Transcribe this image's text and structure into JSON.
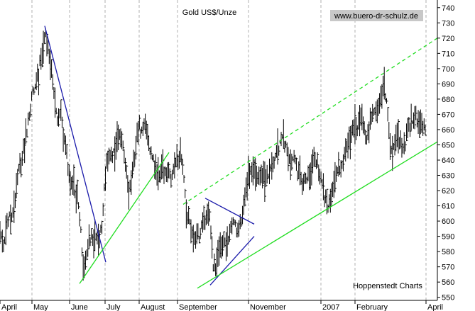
{
  "chart_data": {
    "type": "ohlc",
    "title": "Gold US$/Unze",
    "watermark": "www.buero-dr-schulz.de",
    "source": "Hoppenstedt Charts",
    "x_labels": [
      "April",
      "May",
      "June",
      "July",
      "August",
      "September",
      "November",
      "2007",
      "February",
      "April"
    ],
    "y_ticks": [
      550,
      560,
      570,
      580,
      590,
      600,
      610,
      620,
      630,
      640,
      650,
      660,
      670,
      680,
      690,
      700,
      710,
      720,
      730,
      740
    ],
    "ylim": [
      548,
      745
    ],
    "xlim": [
      0,
      616
    ],
    "x_label_positions": [
      0,
      45,
      98,
      148,
      196,
      250,
      350,
      452,
      500,
      600
    ],
    "grid": "vertical-dashed",
    "axis": "right",
    "colors": {
      "grid": "#b0b0b0",
      "bars": "#000000",
      "blue_lines": "#1a1aaa",
      "green_lines": "#22dd22",
      "watermark_bg": "#c8c8c8"
    },
    "anchors": [
      [
        0,
        590
      ],
      [
        5,
        587
      ],
      [
        10,
        598
      ],
      [
        16,
        603
      ],
      [
        20,
        610
      ],
      [
        25,
        628
      ],
      [
        30,
        640
      ],
      [
        34,
        648
      ],
      [
        38,
        660
      ],
      [
        42,
        672
      ],
      [
        46,
        685
      ],
      [
        50,
        688
      ],
      [
        54,
        695
      ],
      [
        57,
        705
      ],
      [
        60,
        712
      ],
      [
        63,
        724
      ],
      [
        66,
        718
      ],
      [
        70,
        708
      ],
      [
        73,
        697
      ],
      [
        76,
        680
      ],
      [
        80,
        668
      ],
      [
        83,
        672
      ],
      [
        87,
        665
      ],
      [
        91,
        654
      ],
      [
        94,
        645
      ],
      [
        97,
        630
      ],
      [
        100,
        626
      ],
      [
        103,
        625
      ],
      [
        106,
        620
      ],
      [
        109,
        614
      ],
      [
        112,
        608
      ],
      [
        115,
        582
      ],
      [
        117,
        572
      ],
      [
        120,
        575
      ],
      [
        123,
        582
      ],
      [
        126,
        586
      ],
      [
        129,
        590
      ],
      [
        132,
        587
      ],
      [
        135,
        592
      ],
      [
        138,
        585
      ],
      [
        141,
        588
      ],
      [
        144,
        600
      ],
      [
        147,
        620
      ],
      [
        150,
        634
      ],
      [
        154,
        640
      ],
      [
        158,
        642
      ],
      [
        162,
        647
      ],
      [
        166,
        660
      ],
      [
        170,
        655
      ],
      [
        174,
        647
      ],
      [
        178,
        632
      ],
      [
        181,
        615
      ],
      [
        184,
        625
      ],
      [
        188,
        640
      ],
      [
        192,
        652
      ],
      [
        196,
        662
      ],
      [
        200,
        658
      ],
      [
        204,
        664
      ],
      [
        208,
        655
      ],
      [
        212,
        645
      ],
      [
        216,
        638
      ],
      [
        220,
        635
      ],
      [
        224,
        630
      ],
      [
        228,
        638
      ],
      [
        232,
        632
      ],
      [
        236,
        630
      ],
      [
        240,
        628
      ],
      [
        244,
        632
      ],
      [
        248,
        640
      ],
      [
        252,
        645
      ],
      [
        256,
        640
      ],
      [
        260,
        622
      ],
      [
        263,
        600
      ],
      [
        266,
        602
      ],
      [
        269,
        595
      ],
      [
        272,
        590
      ],
      [
        275,
        585
      ],
      [
        278,
        592
      ],
      [
        281,
        588
      ],
      [
        284,
        596
      ],
      [
        287,
        598
      ],
      [
        290,
        602
      ],
      [
        293,
        608
      ],
      [
        296,
        600
      ],
      [
        298,
        582
      ],
      [
        301,
        570
      ],
      [
        304,
        566
      ],
      [
        307,
        575
      ],
      [
        310,
        580
      ],
      [
        313,
        585
      ],
      [
        316,
        588
      ],
      [
        319,
        585
      ],
      [
        322,
        590
      ],
      [
        325,
        598
      ],
      [
        328,
        602
      ],
      [
        331,
        598
      ],
      [
        334,
        590
      ],
      [
        337,
        595
      ],
      [
        340,
        600
      ],
      [
        343,
        608
      ],
      [
        346,
        618
      ],
      [
        350,
        630
      ],
      [
        354,
        635
      ],
      [
        358,
        632
      ],
      [
        362,
        626
      ],
      [
        366,
        628
      ],
      [
        370,
        630
      ],
      [
        374,
        625
      ],
      [
        378,
        630
      ],
      [
        382,
        635
      ],
      [
        386,
        640
      ],
      [
        390,
        645
      ],
      [
        394,
        650
      ],
      [
        398,
        655
      ],
      [
        402,
        650
      ],
      [
        406,
        640
      ],
      [
        410,
        638
      ],
      [
        414,
        640
      ],
      [
        418,
        635
      ],
      [
        422,
        630
      ],
      [
        426,
        625
      ],
      [
        430,
        628
      ],
      [
        434,
        632
      ],
      [
        438,
        636
      ],
      [
        442,
        642
      ],
      [
        446,
        638
      ],
      [
        450,
        632
      ],
      [
        454,
        625
      ],
      [
        456,
        618
      ],
      [
        459,
        612
      ],
      [
        462,
        610
      ],
      [
        465,
        615
      ],
      [
        468,
        622
      ],
      [
        472,
        628
      ],
      [
        476,
        634
      ],
      [
        480,
        638
      ],
      [
        484,
        642
      ],
      [
        488,
        648
      ],
      [
        492,
        652
      ],
      [
        496,
        660
      ],
      [
        500,
        664
      ],
      [
        504,
        662
      ],
      [
        508,
        668
      ],
      [
        512,
        660
      ],
      [
        516,
        655
      ],
      [
        520,
        662
      ],
      [
        524,
        668
      ],
      [
        528,
        670
      ],
      [
        532,
        675
      ],
      [
        536,
        680
      ],
      [
        540,
        688
      ],
      [
        544,
        682
      ],
      [
        548,
        660
      ],
      [
        550,
        648
      ],
      [
        553,
        645
      ],
      [
        556,
        650
      ],
      [
        560,
        658
      ],
      [
        564,
        652
      ],
      [
        568,
        648
      ],
      [
        572,
        655
      ],
      [
        576,
        662
      ],
      [
        580,
        665
      ],
      [
        584,
        668
      ],
      [
        588,
        666
      ],
      [
        592,
        664
      ],
      [
        596,
        660
      ],
      [
        600,
        663
      ]
    ],
    "trendlines": [
      {
        "color": "blue",
        "points": [
          [
            63,
            728
          ],
          [
            149,
            573
          ]
        ]
      },
      {
        "color": "blue",
        "points": [
          [
            289,
            615
          ],
          [
            358,
            598
          ]
        ]
      },
      {
        "color": "blue",
        "points": [
          [
            296,
            558
          ],
          [
            358,
            590
          ]
        ]
      },
      {
        "color": "green",
        "points": [
          [
            112,
            559
          ],
          [
            238,
            645
          ]
        ]
      },
      {
        "color": "green",
        "points": [
          [
            278,
            556
          ],
          [
            616,
            652
          ]
        ]
      },
      {
        "color": "green",
        "dashed": true,
        "points": [
          [
            258,
            611
          ],
          [
            616,
            720
          ]
        ]
      }
    ]
  }
}
